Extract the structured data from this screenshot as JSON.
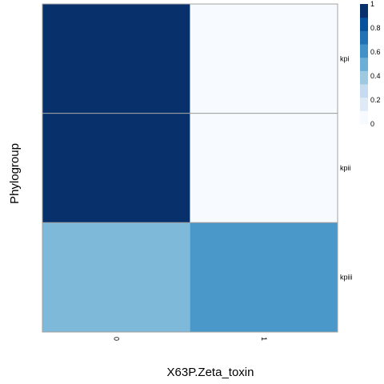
{
  "chart_data": {
    "type": "heatmap",
    "xlabel": "X63P.Zeta_toxin",
    "ylabel": "Phylogroup",
    "x_categories": [
      "0",
      "1"
    ],
    "y_categories": [
      "kpi",
      "kpii",
      "kpiii"
    ],
    "values": [
      [
        1.0,
        0.0
      ],
      [
        1.0,
        0.0
      ],
      [
        0.45,
        0.6
      ]
    ],
    "color_scale": {
      "min": 0,
      "max": 1,
      "ticks": [
        "0",
        "0.2",
        "0.4",
        "0.6",
        "0.8",
        "1"
      ],
      "colors": [
        "#f7fbff",
        "#deebf7",
        "#c6dbef",
        "#9ecae1",
        "#6baed6",
        "#4292c6",
        "#2171b5",
        "#08519c",
        "#08306b"
      ]
    },
    "legend_position": "top-right",
    "cell_border_color": "#a0a0a0"
  }
}
